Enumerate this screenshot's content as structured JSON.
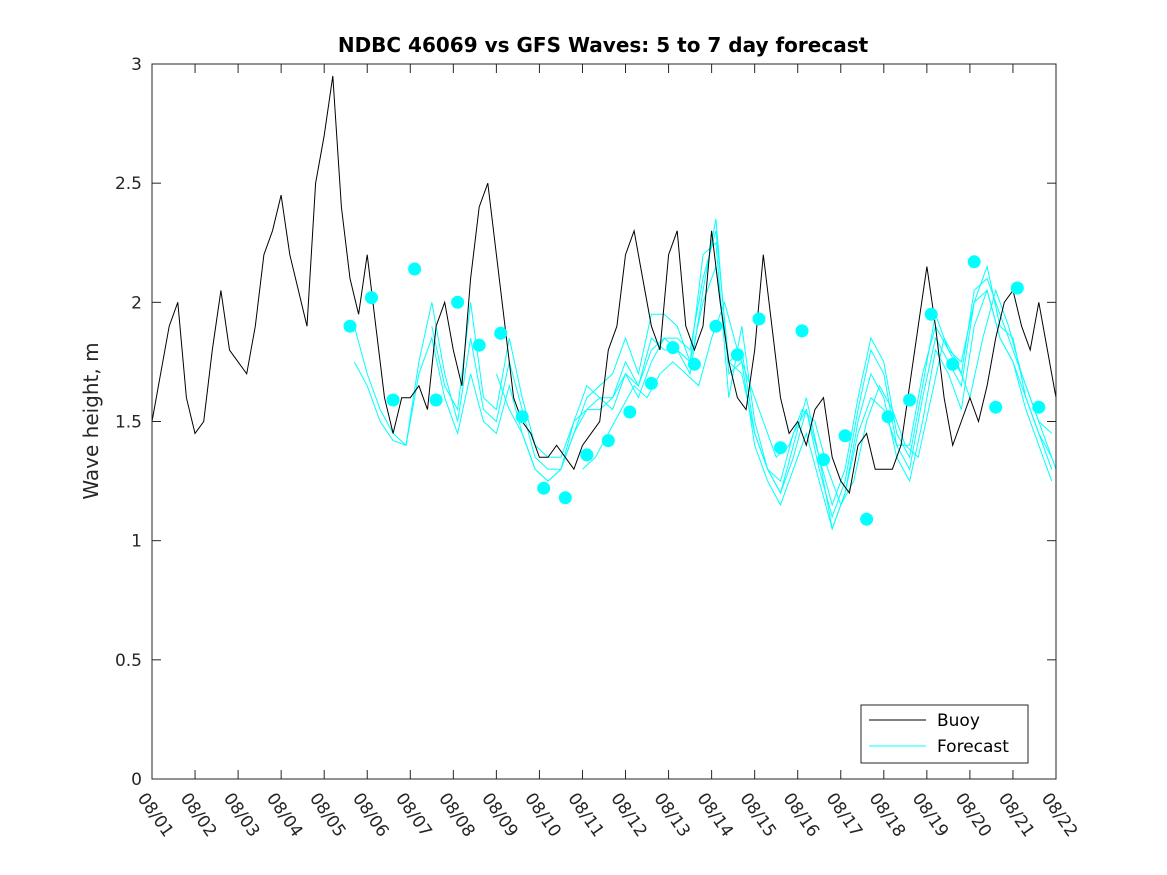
{
  "chart_data": {
    "type": "line",
    "title": "NDBC 46069 vs GFS Waves: 5 to 7 day forecast",
    "xlabel": "",
    "ylabel": "Wave height, m",
    "xlim": [
      0,
      21
    ],
    "ylim": [
      0,
      3
    ],
    "yticks": [
      0,
      0.5,
      1,
      1.5,
      2,
      2.5,
      3
    ],
    "ytick_labels": [
      "0",
      "0.5",
      "1",
      "1.5",
      "2",
      "2.5",
      "3"
    ],
    "xtick_labels": [
      "08/01",
      "08/02",
      "08/03",
      "08/04",
      "08/05",
      "08/06",
      "08/07",
      "08/08",
      "08/09",
      "08/10",
      "08/11",
      "08/12",
      "08/13",
      "08/14",
      "08/15",
      "08/16",
      "08/17",
      "08/18",
      "08/19",
      "08/20",
      "08/21",
      "08/22"
    ],
    "x_units": "days since 08/01",
    "legend": {
      "position": "bottom-right",
      "entries": [
        {
          "label": "Buoy",
          "color": "#000000"
        },
        {
          "label": "Forecast",
          "color": "#00FFFF"
        }
      ]
    },
    "series": [
      {
        "name": "Buoy",
        "color": "#000000",
        "x": [
          0,
          0.2,
          0.4,
          0.6,
          0.8,
          1.0,
          1.2,
          1.4,
          1.6,
          1.8,
          2.0,
          2.2,
          2.4,
          2.6,
          2.8,
          3.0,
          3.2,
          3.4,
          3.6,
          3.8,
          4.0,
          4.2,
          4.4,
          4.6,
          4.8,
          5.0,
          5.2,
          5.4,
          5.6,
          5.8,
          6.0,
          6.2,
          6.4,
          6.6,
          6.8,
          7.0,
          7.2,
          7.4,
          7.6,
          7.8,
          8.0,
          8.2,
          8.4,
          8.6,
          8.8,
          9.0,
          9.2,
          9.4,
          9.6,
          9.8,
          10.0,
          10.2,
          10.4,
          10.6,
          10.8,
          11.0,
          11.2,
          11.4,
          11.6,
          11.8,
          12.0,
          12.2,
          12.4,
          12.6,
          12.8,
          13.0,
          13.2,
          13.4,
          13.6,
          13.8,
          14.0,
          14.2,
          14.4,
          14.6,
          14.8,
          15.0,
          15.2,
          15.4,
          15.6,
          15.8,
          16.0,
          16.2,
          16.4,
          16.6,
          16.8,
          17.0,
          17.2,
          17.4,
          17.6,
          17.8,
          18.0,
          18.2,
          18.4,
          18.6,
          18.8,
          19.0,
          19.2,
          19.4,
          19.6,
          19.8,
          20.0,
          20.2,
          20.4,
          20.6,
          20.8,
          21.0
        ],
        "values": [
          1.5,
          1.7,
          1.9,
          2.0,
          1.6,
          1.45,
          1.5,
          1.8,
          2.05,
          1.8,
          1.75,
          1.7,
          1.9,
          2.2,
          2.3,
          2.45,
          2.2,
          2.05,
          1.9,
          2.5,
          2.7,
          2.95,
          2.4,
          2.1,
          1.95,
          2.2,
          1.9,
          1.6,
          1.45,
          1.6,
          1.6,
          1.65,
          1.55,
          1.9,
          2.0,
          1.8,
          1.65,
          2.1,
          2.4,
          2.5,
          2.2,
          1.9,
          1.6,
          1.5,
          1.45,
          1.35,
          1.35,
          1.4,
          1.35,
          1.3,
          1.4,
          1.45,
          1.5,
          1.8,
          1.9,
          2.2,
          2.3,
          2.1,
          1.9,
          1.8,
          2.2,
          2.3,
          1.9,
          1.8,
          1.9,
          2.3,
          2.0,
          1.75,
          1.6,
          1.55,
          1.8,
          2.2,
          1.9,
          1.6,
          1.45,
          1.5,
          1.4,
          1.55,
          1.6,
          1.35,
          1.25,
          1.2,
          1.4,
          1.45,
          1.3,
          1.3,
          1.3,
          1.4,
          1.65,
          1.9,
          2.15,
          1.9,
          1.6,
          1.4,
          1.5,
          1.6,
          1.5,
          1.65,
          1.85,
          2.0,
          2.05,
          1.9,
          1.8,
          2.0,
          1.8,
          1.6
        ]
      },
      {
        "name": "Forecast",
        "color": "#00FFFF",
        "lines": [
          {
            "x": [
              4.7,
              5.0,
              5.3,
              5.6,
              5.9,
              6.2,
              6.5,
              6.8,
              7.1,
              7.4,
              7.7,
              8.0,
              8.3,
              8.6,
              8.9,
              9.2,
              9.5,
              9.8,
              10.1,
              10.4,
              10.7,
              11.0,
              11.3,
              11.6,
              11.9,
              12.2,
              12.5,
              12.8,
              13.1,
              13.4,
              13.7,
              14.0,
              14.3,
              14.6,
              14.9,
              15.2,
              15.5,
              15.8,
              16.1,
              16.4,
              16.7,
              17.0,
              17.3,
              17.6,
              17.9,
              18.2,
              18.5,
              18.8,
              19.1,
              19.4,
              19.7,
              20.0,
              20.3,
              20.6,
              20.9
            ],
            "values": [
              1.9,
              1.7,
              1.55,
              1.45,
              1.4,
              1.75,
              2.0,
              1.7,
              1.5,
              1.85,
              1.55,
              1.5,
              1.75,
              1.55,
              1.35,
              1.3,
              1.3,
              1.45,
              1.6,
              1.65,
              1.7,
              1.85,
              1.7,
              1.95,
              1.95,
              1.9,
              1.75,
              2.2,
              2.25,
              1.6,
              1.9,
              1.5,
              1.3,
              1.2,
              1.35,
              1.55,
              1.3,
              1.1,
              1.25,
              1.55,
              1.8,
              1.7,
              1.4,
              1.3,
              1.6,
              1.85,
              1.75,
              1.65,
              2.0,
              2.15,
              1.9,
              1.85,
              1.6,
              1.45,
              1.3
            ]
          },
          {
            "x": [
              4.7,
              5.0,
              5.3,
              5.6,
              5.9,
              6.2,
              6.5,
              6.8,
              7.1,
              7.4,
              7.7,
              8.0,
              8.3,
              8.6,
              8.9,
              9.2,
              9.5,
              9.8,
              10.1,
              10.4,
              10.7,
              11.0,
              11.3,
              11.6,
              11.9,
              12.2,
              12.5,
              12.8,
              13.1,
              13.4,
              13.7,
              14.0,
              14.3,
              14.6,
              14.9,
              15.2,
              15.5,
              15.8,
              16.1,
              16.4,
              16.7,
              17.0,
              17.3,
              17.6,
              17.9,
              18.2,
              18.5,
              18.8,
              19.1,
              19.4,
              19.7,
              20.0,
              20.3,
              20.6,
              20.9
            ],
            "values": [
              1.75,
              1.65,
              1.5,
              1.42,
              1.4,
              1.7,
              1.85,
              1.6,
              1.45,
              1.7,
              1.5,
              1.45,
              1.65,
              1.45,
              1.3,
              1.25,
              1.3,
              1.5,
              1.55,
              1.55,
              1.6,
              1.75,
              1.65,
              1.85,
              1.8,
              1.8,
              1.7,
              2.05,
              2.35,
              1.7,
              1.75,
              1.4,
              1.25,
              1.15,
              1.3,
              1.45,
              1.25,
              1.05,
              1.2,
              1.5,
              1.7,
              1.6,
              1.35,
              1.25,
              1.5,
              1.8,
              1.7,
              1.55,
              1.9,
              2.05,
              1.85,
              1.75,
              1.55,
              1.4,
              1.25
            ]
          },
          {
            "x": [
              6.5,
              6.8,
              7.1,
              7.4,
              7.7,
              8.0,
              8.3,
              8.6,
              8.9,
              9.2,
              9.5,
              9.8,
              10.1,
              10.4,
              10.7,
              11.0,
              11.3,
              11.6,
              11.9,
              12.2,
              12.5,
              12.8,
              13.1,
              13.4,
              13.7,
              14.0,
              14.3,
              14.6,
              14.9,
              15.2,
              15.5,
              15.8,
              16.1,
              16.4,
              16.7,
              17.0,
              17.3,
              17.6,
              17.9,
              18.2,
              18.5,
              18.8,
              19.1,
              19.4,
              19.7,
              20.0,
              20.3,
              20.6,
              20.9
            ],
            "values": [
              1.9,
              1.65,
              1.55,
              2.0,
              1.6,
              1.55,
              1.85,
              1.6,
              1.4,
              1.35,
              1.35,
              1.5,
              1.65,
              1.6,
              1.55,
              1.7,
              1.6,
              1.75,
              1.85,
              1.85,
              1.8,
              2.1,
              2.3,
              1.75,
              1.8,
              1.45,
              1.3,
              1.2,
              1.4,
              1.6,
              1.35,
              1.15,
              1.3,
              1.6,
              1.85,
              1.75,
              1.45,
              1.35,
              1.65,
              1.95,
              1.8,
              1.7,
              2.05,
              2.1,
              1.95,
              1.8,
              1.65,
              1.5,
              1.45
            ]
          },
          {
            "x": [
              8.0,
              8.3,
              8.6,
              8.9,
              9.2,
              9.5,
              9.8,
              10.1,
              10.4,
              10.7,
              11.0,
              11.3,
              11.6,
              11.9,
              12.2,
              12.5,
              12.8,
              13.1,
              13.4,
              13.7,
              14.0,
              14.3,
              14.6,
              14.9,
              15.2,
              15.5,
              15.8,
              16.1,
              16.4,
              16.7,
              17.0,
              17.3,
              17.6,
              17.9,
              18.2,
              18.5,
              18.8,
              19.1,
              19.4,
              19.7,
              20.0,
              20.3,
              20.6,
              20.9
            ],
            "values": [
              1.7,
              1.55,
              1.45,
              1.3,
              1.25,
              1.3,
              1.45,
              1.55,
              1.6,
              1.6,
              1.7,
              1.65,
              1.8,
              1.85,
              1.8,
              1.75,
              2.0,
              2.15,
              1.75,
              1.7,
              1.45,
              1.3,
              1.25,
              1.45,
              1.55,
              1.35,
              1.05,
              1.2,
              1.45,
              1.6,
              1.55,
              1.4,
              1.4,
              1.7,
              1.9,
              1.8,
              1.75,
              2.0,
              2.05,
              1.85,
              1.75,
              1.6,
              1.45,
              1.35
            ]
          },
          {
            "x": [
              10.0,
              10.3,
              10.6,
              10.9,
              11.2,
              11.5,
              11.8,
              12.1,
              12.4,
              12.7,
              13.0,
              13.3,
              13.6,
              13.9,
              14.2,
              14.5,
              14.8,
              15.1,
              15.4,
              15.7,
              16.0,
              16.3,
              16.6,
              16.9,
              17.2,
              17.5,
              17.8,
              18.1,
              18.4,
              18.7,
              19.0,
              19.3,
              19.6,
              19.9,
              20.2,
              20.5,
              20.8,
              21.0
            ],
            "values": [
              1.3,
              1.35,
              1.45,
              1.55,
              1.65,
              1.6,
              1.7,
              1.75,
              1.7,
              1.65,
              1.85,
              2.0,
              1.8,
              1.65,
              1.5,
              1.35,
              1.4,
              1.55,
              1.5,
              1.3,
              1.15,
              1.25,
              1.5,
              1.65,
              1.55,
              1.4,
              1.35,
              1.6,
              1.85,
              1.75,
              1.6,
              1.85,
              2.05,
              1.9,
              1.7,
              1.55,
              1.4,
              1.3
            ]
          }
        ],
        "markers": {
          "x": [
            4.6,
            5.1,
            5.6,
            6.1,
            6.6,
            7.1,
            7.6,
            8.1,
            8.6,
            9.1,
            9.6,
            10.1,
            10.6,
            11.1,
            11.6,
            12.1,
            12.6,
            13.1,
            13.6,
            14.1,
            14.6,
            15.1,
            15.6,
            16.1,
            16.6,
            17.1,
            17.6,
            18.1,
            18.6,
            19.1,
            19.6,
            20.1,
            20.6
          ],
          "values": [
            1.9,
            2.02,
            1.59,
            2.14,
            1.59,
            2.0,
            1.82,
            1.87,
            1.52,
            1.22,
            1.18,
            1.36,
            1.42,
            1.54,
            1.66,
            1.81,
            1.74,
            1.9,
            1.78,
            1.93,
            1.39,
            1.88,
            1.34,
            1.44,
            1.09,
            1.52,
            1.59,
            1.95,
            1.74,
            2.17,
            1.56,
            2.06,
            1.56
          ]
        }
      }
    ]
  }
}
